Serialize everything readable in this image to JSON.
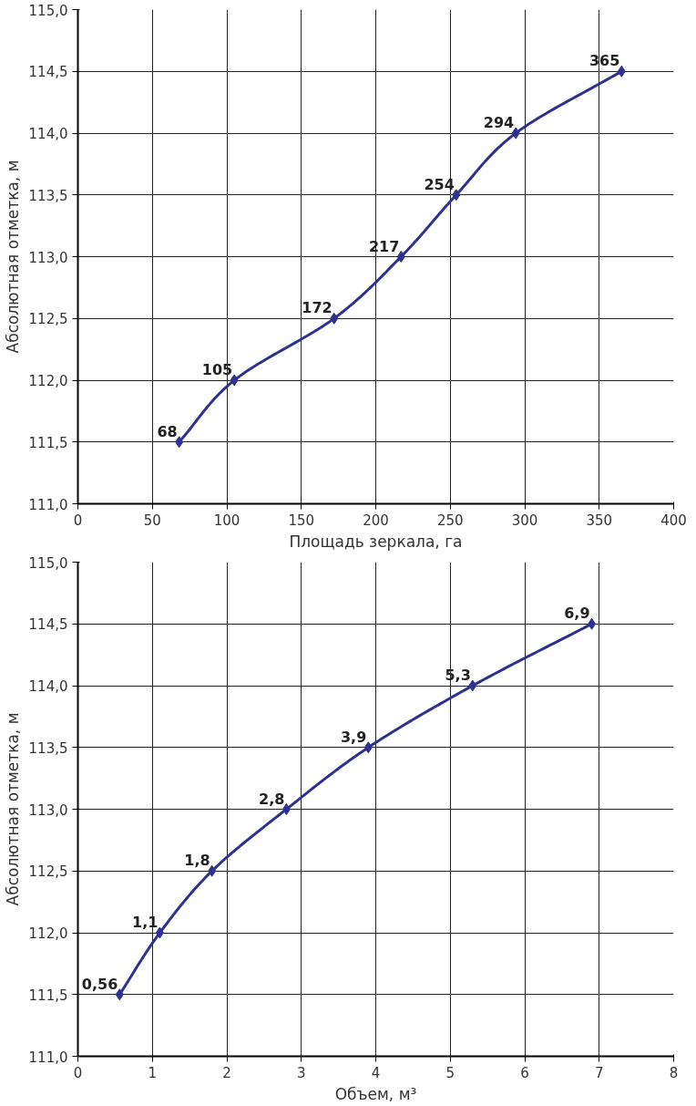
{
  "chart_data": [
    {
      "type": "line",
      "xlabel": "Площадь зеркала, га",
      "ylabel": "Абсолютная отметка, м",
      "x": [
        68,
        105,
        172,
        217,
        254,
        294,
        365
      ],
      "series": [
        {
          "color": "#2e3192",
          "values": [
            111.5,
            112.0,
            112.5,
            113.0,
            113.5,
            114.0,
            114.5
          ]
        }
      ],
      "xlim": [
        0,
        400
      ],
      "xticks": [
        0,
        50,
        100,
        150,
        200,
        250,
        300,
        350,
        400
      ],
      "ylim": [
        111,
        115
      ],
      "yticks": [
        {
          "value": 111,
          "label": "111,0"
        },
        {
          "value": 111.5,
          "label": "111,5"
        },
        {
          "value": 112,
          "label": "112,0"
        },
        {
          "value": 112.5,
          "label": "112,5"
        },
        {
          "value": 113,
          "label": "113,0"
        },
        {
          "value": 113.5,
          "label": "113,5"
        },
        {
          "value": 114,
          "label": "114,0"
        },
        {
          "value": 114.5,
          "label": "114,5"
        },
        {
          "value": 115,
          "label": "115,0"
        }
      ],
      "annotations": [
        {
          "text": "68",
          "x": 68,
          "y": 111.5
        },
        {
          "text": "105",
          "x": 105,
          "y": 112.0
        },
        {
          "text": "172",
          "x": 172,
          "y": 112.5
        },
        {
          "text": "217",
          "x": 217,
          "y": 113.0
        },
        {
          "text": "254",
          "x": 254,
          "y": 113.5
        },
        {
          "text": "294",
          "x": 294,
          "y": 114.0
        },
        {
          "text": "365",
          "x": 365,
          "y": 114.5
        }
      ],
      "grid": true,
      "marker": "diamond",
      "line_style": "solid"
    },
    {
      "type": "line",
      "xlabel": "Объем, м³",
      "ylabel": "Абсолютная отметка, м",
      "x": [
        0.56,
        1.1,
        1.8,
        2.8,
        3.9,
        5.3,
        6.9
      ],
      "series": [
        {
          "color": "#2e3192",
          "values": [
            111.5,
            112.0,
            112.5,
            113.0,
            113.5,
            114.0,
            114.5
          ]
        }
      ],
      "xlim": [
        0,
        8
      ],
      "xticks": [
        0,
        1,
        2,
        3,
        4,
        5,
        6,
        7,
        8
      ],
      "ylim": [
        111,
        115
      ],
      "yticks": [
        {
          "value": 111,
          "label": "111,0"
        },
        {
          "value": 111.5,
          "label": "111,5"
        },
        {
          "value": 112,
          "label": "112,0"
        },
        {
          "value": 112.5,
          "label": "112,5"
        },
        {
          "value": 113,
          "label": "113,0"
        },
        {
          "value": 113.5,
          "label": "113,5"
        },
        {
          "value": 114,
          "label": "114,0"
        },
        {
          "value": 114.5,
          "label": "114,5"
        },
        {
          "value": 115,
          "label": "115,0"
        }
      ],
      "annotations": [
        {
          "text": "0,56",
          "x": 0.56,
          "y": 111.5
        },
        {
          "text": "1,1",
          "x": 1.1,
          "y": 112.0
        },
        {
          "text": "1,8",
          "x": 1.8,
          "y": 112.5
        },
        {
          "text": "2,8",
          "x": 2.8,
          "y": 113.0
        },
        {
          "text": "3,9",
          "x": 3.9,
          "y": 113.5
        },
        {
          "text": "5,3",
          "x": 5.3,
          "y": 114.0
        },
        {
          "text": "6,9",
          "x": 6.9,
          "y": 114.5
        }
      ],
      "grid": true,
      "marker": "diamond",
      "line_style": "solid"
    }
  ]
}
